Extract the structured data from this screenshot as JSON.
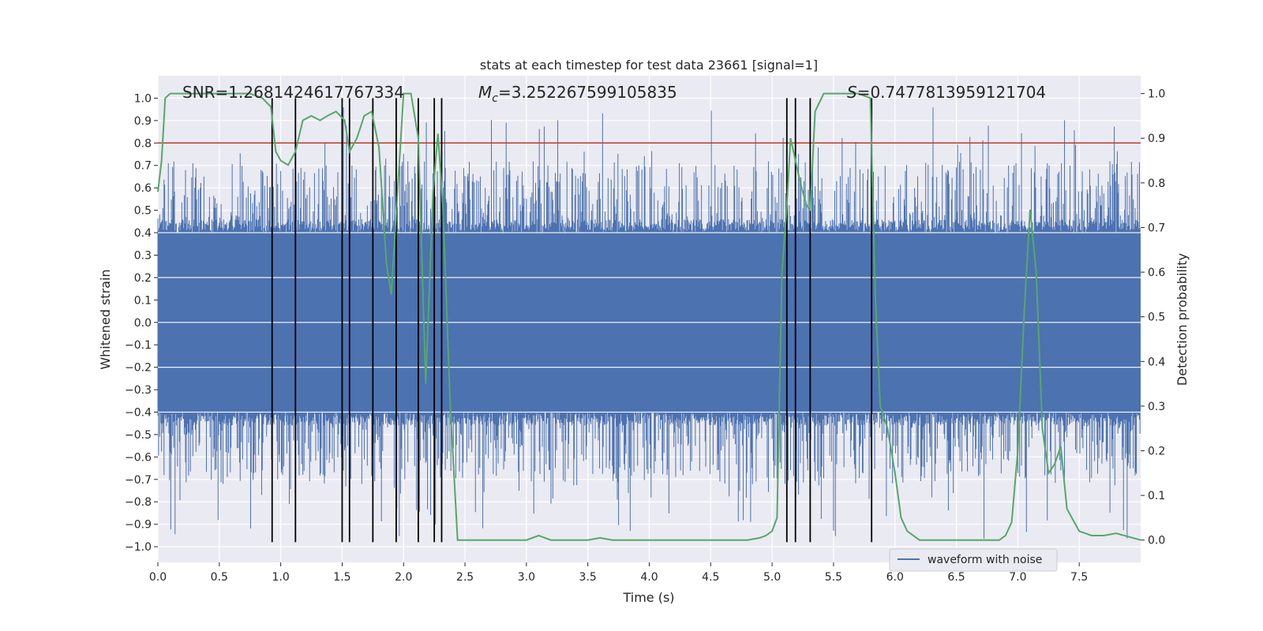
{
  "chart_data": {
    "type": "line",
    "title": "stats at each timestep for test data 23661 [signal=1]",
    "xlabel": "Time (s)",
    "ylabel_left": "Whitened strain",
    "ylabel_right": "Detection probability",
    "xlim": [
      0,
      8
    ],
    "ylim_left": [
      -1.07,
      1.1
    ],
    "ylim_right": [
      -0.05,
      1.04
    ],
    "x_ticks": [
      0.0,
      0.5,
      1.0,
      1.5,
      2.0,
      2.5,
      3.0,
      3.5,
      4.0,
      4.5,
      5.0,
      5.5,
      6.0,
      6.5,
      7.0,
      7.5
    ],
    "x_tick_labels": [
      "0.0",
      "0.5",
      "1.0",
      "1.5",
      "2.0",
      "2.5",
      "3.0",
      "3.5",
      "4.0",
      "4.5",
      "5.0",
      "5.5",
      "6.0",
      "6.5",
      "7.0",
      "7.5"
    ],
    "y_left_ticks": [
      1.0,
      0.9,
      0.8,
      0.7,
      0.6,
      0.5,
      0.4,
      0.3,
      0.2,
      0.1,
      0.0,
      -0.1,
      -0.2,
      -0.3,
      -0.4,
      -0.5,
      -0.6,
      -0.7,
      -0.8,
      -0.9,
      -1.0
    ],
    "y_left_tick_labels": [
      "1.0",
      "0.9",
      "0.8",
      "0.7",
      "0.6",
      "0.5",
      "0.4",
      "0.3",
      "0.2",
      "0.1",
      "0.0",
      "−0.1",
      "−0.2",
      "−0.3",
      "−0.4",
      "−0.5",
      "−0.6",
      "−0.7",
      "−0.8",
      "−0.9",
      "−1.0"
    ],
    "y_right_ticks": [
      1.0,
      0.9,
      0.8,
      0.7,
      0.6,
      0.5,
      0.4,
      0.3,
      0.2,
      0.1,
      0.0
    ],
    "y_right_tick_labels": [
      "1.0",
      "0.9",
      "0.8",
      "0.7",
      "0.6",
      "0.5",
      "0.4",
      "0.3",
      "0.2",
      "0.1",
      "0.0"
    ],
    "grid": true,
    "legend": {
      "placement": "lower-right",
      "entries": [
        "waveform with noise"
      ]
    },
    "annotations": {
      "snr": "SNR=1.2681424617767334",
      "mc_symbol": "M",
      "mc_sub": "c",
      "mc_value": "=3.252267599105835",
      "s_symbol": "S",
      "s_value": "=0.7477813959121704"
    },
    "threshold": {
      "axis": "left",
      "y": 0.8,
      "color": "#c0392b"
    },
    "vlines_x": [
      0.93,
      1.12,
      1.5,
      1.56,
      1.75,
      1.94,
      2.12,
      2.25,
      2.31,
      5.12,
      5.19,
      5.31,
      5.81
    ],
    "vlines_left_range": [
      -0.98,
      1.0
    ],
    "series": [
      {
        "name": "waveform with noise",
        "axis": "left",
        "color": "#4c72b0",
        "kind": "noise",
        "dense_band": 0.4,
        "peak_envelope": 0.72
      },
      {
        "axis": "right",
        "color": "#55a868",
        "x": [
          0.0,
          0.03,
          0.06,
          0.1,
          0.2,
          0.4,
          0.6,
          0.75,
          0.85,
          0.92,
          0.96,
          1.0,
          1.06,
          1.12,
          1.18,
          1.25,
          1.32,
          1.38,
          1.45,
          1.52,
          1.56,
          1.62,
          1.68,
          1.74,
          1.8,
          1.86,
          1.9,
          1.96,
          2.0,
          2.06,
          2.12,
          2.18,
          2.24,
          2.28,
          2.32,
          2.38,
          2.44,
          2.5,
          2.6,
          2.7,
          2.8,
          2.9,
          3.0,
          3.1,
          3.15,
          3.2,
          3.3,
          3.4,
          3.5,
          3.6,
          3.7,
          3.8,
          4.0,
          4.2,
          4.4,
          4.6,
          4.8,
          4.9,
          4.95,
          5.0,
          5.04,
          5.08,
          5.12,
          5.15,
          5.19,
          5.23,
          5.28,
          5.31,
          5.35,
          5.42,
          5.5,
          5.6,
          5.7,
          5.8,
          5.84,
          5.88,
          5.94,
          6.0,
          6.05,
          6.1,
          6.2,
          6.4,
          6.6,
          6.8,
          6.85,
          6.9,
          6.95,
          7.0,
          7.05,
          7.1,
          7.15,
          7.2,
          7.25,
          7.3,
          7.35,
          7.4,
          7.5,
          7.6,
          7.7,
          7.8,
          8.0
        ],
        "y": [
          0.78,
          0.85,
          0.99,
          1.0,
          1.0,
          1.0,
          1.0,
          1.0,
          0.99,
          0.97,
          0.87,
          0.85,
          0.84,
          0.87,
          0.94,
          0.95,
          0.94,
          0.95,
          0.96,
          0.94,
          0.87,
          0.9,
          0.95,
          0.96,
          0.88,
          0.62,
          0.55,
          0.82,
          1.0,
          1.0,
          0.9,
          0.35,
          0.78,
          0.91,
          0.75,
          0.3,
          0.0,
          0.0,
          0.0,
          0.0,
          0.0,
          0.0,
          0.0,
          0.01,
          0.005,
          0.0,
          0.0,
          0.0,
          0.0,
          0.005,
          0.0,
          0.0,
          0.0,
          0.0,
          0.0,
          0.0,
          0.0,
          0.005,
          0.01,
          0.02,
          0.05,
          0.6,
          0.75,
          0.9,
          0.85,
          0.8,
          0.75,
          0.74,
          0.96,
          1.0,
          1.0,
          1.0,
          1.0,
          0.99,
          0.55,
          0.3,
          0.25,
          0.15,
          0.05,
          0.02,
          0.0,
          0.0,
          0.0,
          0.0,
          0.0,
          0.01,
          0.04,
          0.2,
          0.5,
          0.74,
          0.6,
          0.25,
          0.15,
          0.17,
          0.21,
          0.07,
          0.02,
          0.01,
          0.01,
          0.015,
          0.0
        ]
      }
    ]
  }
}
